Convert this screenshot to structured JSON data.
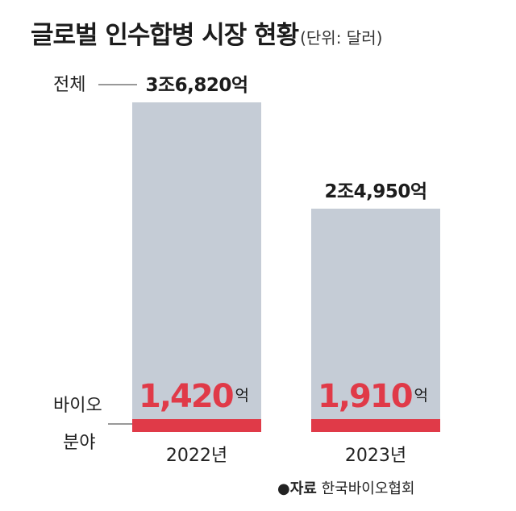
{
  "title": "글로벌 인수합병 시장 현황",
  "unit": "(단위: 달러)",
  "source": {
    "bullet": "●",
    "label": "자료",
    "org": "한국바이오협회"
  },
  "labels": {
    "total": "전체",
    "bio_line1": "바이오",
    "bio_line2": "분야"
  },
  "colors": {
    "total": "#c5ccd6",
    "bio": "#e03a48",
    "text": "#1c1c1c"
  },
  "chart_data": {
    "type": "bar",
    "unit": "억 달러",
    "categories": [
      "2022년",
      "2023년"
    ],
    "series": [
      {
        "name": "전체",
        "values": [
          36820,
          24950
        ],
        "labels": [
          "3조6,820억",
          "2조4,950억"
        ]
      },
      {
        "name": "바이오 분야",
        "values": [
          1420,
          1910
        ],
        "labels": [
          "1,420",
          "1,910"
        ],
        "suffix": "억"
      }
    ]
  }
}
